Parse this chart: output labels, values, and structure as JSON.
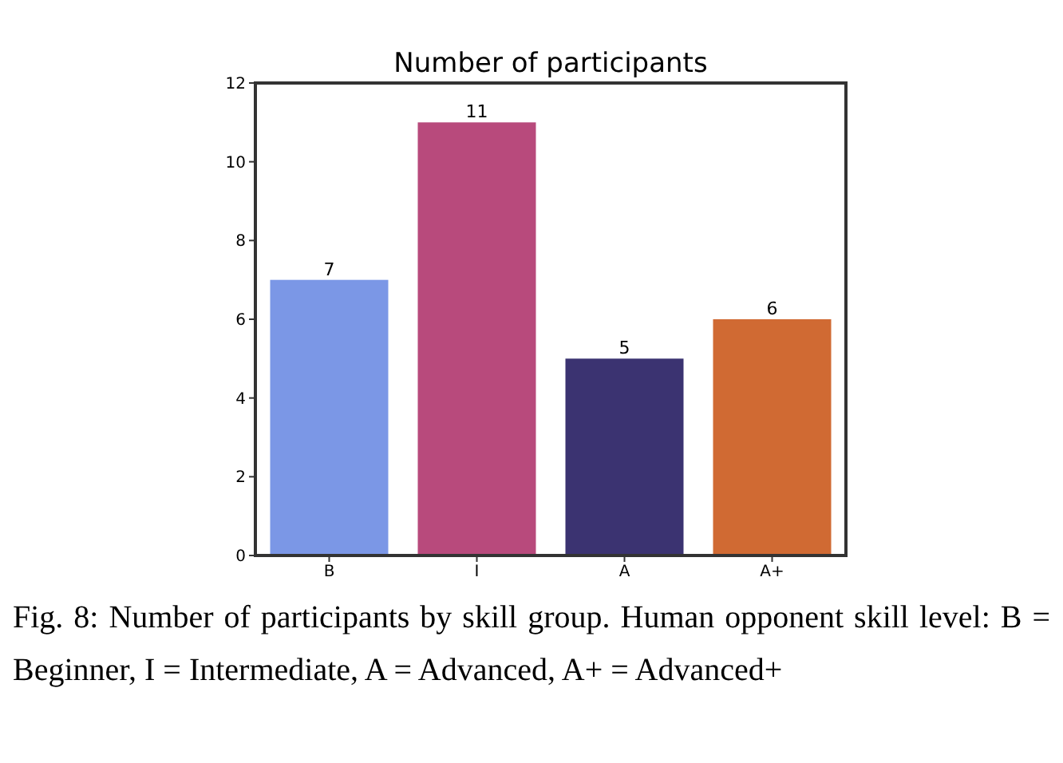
{
  "chart_data": {
    "type": "bar",
    "title": "Number of participants",
    "categories": [
      "B",
      "I",
      "A",
      "A+"
    ],
    "values": [
      7,
      11,
      5,
      6
    ],
    "colors": [
      "#7b97e6",
      "#b84a7c",
      "#3b3371",
      "#d06a33"
    ],
    "ylim": [
      0,
      12
    ],
    "yticks": [
      0,
      2,
      4,
      6,
      8,
      10,
      12
    ],
    "data_labels": true,
    "grid": false,
    "annotations": [
      "Fig. 8: Number of participants by skill group. Human opponent skill level: B = Beginner, I = Intermediate, A = Advanced, A+ = Advanced+"
    ]
  }
}
